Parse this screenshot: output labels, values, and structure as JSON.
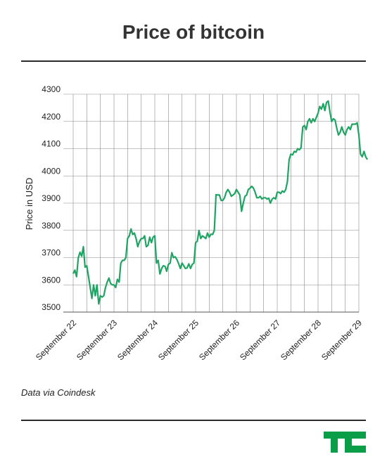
{
  "page": {
    "title": "Price of bitcoin",
    "source": "Data via Coindesk",
    "line_color": "#1fa463",
    "logo_color": "#0a9e49",
    "logo_icon": "techcrunch-tc-logo-icon"
  },
  "chart_data": {
    "type": "line",
    "title": "Price of bitcoin",
    "xlabel": "",
    "ylabel": "Price in USD",
    "ylim": [
      3500,
      4300
    ],
    "yticks": [
      3500,
      3600,
      3700,
      3800,
      3900,
      4000,
      4100,
      4200,
      4300
    ],
    "xlim": [
      "2017-09-22",
      "2017-09-29"
    ],
    "xtick_labels": [
      "September 22",
      "September 23",
      "September 24",
      "September 25",
      "September 26",
      "September 27",
      "September 28",
      "September 29"
    ],
    "grid": true,
    "legend": "none",
    "series": [
      {
        "x": [
          "2017-09-22T00:00",
          "2017-09-22T01:00",
          "2017-09-22T02:00",
          "2017-09-22T03:00",
          "2017-09-22T04:00",
          "2017-09-22T05:00",
          "2017-09-22T06:00",
          "2017-09-22T07:00",
          "2017-09-22T08:00",
          "2017-09-22T09:00",
          "2017-09-22T10:00",
          "2017-09-22T11:00",
          "2017-09-22T12:00",
          "2017-09-22T13:00",
          "2017-09-22T14:00",
          "2017-09-22T15:00",
          "2017-09-22T16:00",
          "2017-09-22T17:00",
          "2017-09-22T18:00",
          "2017-09-22T19:00",
          "2017-09-22T20:00",
          "2017-09-22T21:00",
          "2017-09-22T22:00",
          "2017-09-22T23:00",
          "2017-09-23T00:00",
          "2017-09-23T01:00",
          "2017-09-23T02:00",
          "2017-09-23T03:00",
          "2017-09-23T04:00",
          "2017-09-23T05:00",
          "2017-09-23T06:00",
          "2017-09-23T07:00",
          "2017-09-23T08:00",
          "2017-09-23T09:00",
          "2017-09-23T10:00",
          "2017-09-23T11:00",
          "2017-09-23T12:00",
          "2017-09-23T13:00",
          "2017-09-23T14:00",
          "2017-09-23T15:00",
          "2017-09-23T16:00",
          "2017-09-23T17:00",
          "2017-09-23T18:00",
          "2017-09-23T19:00",
          "2017-09-23T20:00",
          "2017-09-23T21:00",
          "2017-09-23T22:00",
          "2017-09-23T23:00",
          "2017-09-24T00:00",
          "2017-09-24T01:00",
          "2017-09-24T02:00",
          "2017-09-24T03:00",
          "2017-09-24T04:00",
          "2017-09-24T05:00",
          "2017-09-24T06:00",
          "2017-09-24T07:00",
          "2017-09-24T08:00",
          "2017-09-24T09:00",
          "2017-09-24T10:00",
          "2017-09-24T11:00",
          "2017-09-24T12:00",
          "2017-09-24T13:00",
          "2017-09-24T14:00",
          "2017-09-24T15:00",
          "2017-09-24T16:00",
          "2017-09-24T17:00",
          "2017-09-24T18:00",
          "2017-09-24T19:00",
          "2017-09-24T20:00",
          "2017-09-24T21:00",
          "2017-09-24T22:00",
          "2017-09-24T23:00",
          "2017-09-25T00:00",
          "2017-09-25T01:00",
          "2017-09-25T02:00",
          "2017-09-25T03:00",
          "2017-09-25T04:00",
          "2017-09-25T05:00",
          "2017-09-25T06:00",
          "2017-09-25T07:00",
          "2017-09-25T08:00",
          "2017-09-25T09:00",
          "2017-09-25T10:00",
          "2017-09-25T11:00",
          "2017-09-25T12:00",
          "2017-09-25T13:00",
          "2017-09-25T14:00",
          "2017-09-25T15:00",
          "2017-09-25T16:00",
          "2017-09-25T17:00",
          "2017-09-25T18:00",
          "2017-09-25T19:00",
          "2017-09-25T20:00",
          "2017-09-25T21:00",
          "2017-09-25T22:00",
          "2017-09-25T23:00",
          "2017-09-26T00:00",
          "2017-09-26T01:00",
          "2017-09-26T02:00",
          "2017-09-26T03:00",
          "2017-09-26T04:00",
          "2017-09-26T05:00",
          "2017-09-26T06:00",
          "2017-09-26T07:00",
          "2017-09-26T08:00",
          "2017-09-26T09:00",
          "2017-09-26T10:00",
          "2017-09-26T11:00",
          "2017-09-26T12:00",
          "2017-09-26T13:00",
          "2017-09-26T14:00",
          "2017-09-26T15:00",
          "2017-09-26T16:00",
          "2017-09-26T17:00",
          "2017-09-26T18:00",
          "2017-09-26T19:00",
          "2017-09-26T20:00",
          "2017-09-26T21:00",
          "2017-09-26T22:00",
          "2017-09-26T23:00",
          "2017-09-27T00:00",
          "2017-09-27T01:00",
          "2017-09-27T02:00",
          "2017-09-27T03:00",
          "2017-09-27T04:00",
          "2017-09-27T05:00",
          "2017-09-27T06:00",
          "2017-09-27T07:00",
          "2017-09-27T08:00",
          "2017-09-27T09:00",
          "2017-09-27T10:00",
          "2017-09-27T11:00",
          "2017-09-27T12:00",
          "2017-09-27T13:00",
          "2017-09-27T14:00",
          "2017-09-27T15:00",
          "2017-09-27T16:00",
          "2017-09-27T17:00",
          "2017-09-27T18:00",
          "2017-09-27T19:00",
          "2017-09-27T20:00",
          "2017-09-27T21:00",
          "2017-09-27T22:00",
          "2017-09-27T23:00",
          "2017-09-28T00:00",
          "2017-09-28T01:00",
          "2017-09-28T02:00",
          "2017-09-28T03:00",
          "2017-09-28T04:00",
          "2017-09-28T05:00",
          "2017-09-28T06:00",
          "2017-09-28T07:00",
          "2017-09-28T08:00",
          "2017-09-28T09:00",
          "2017-09-28T10:00",
          "2017-09-28T11:00",
          "2017-09-28T12:00",
          "2017-09-28T13:00",
          "2017-09-28T14:00",
          "2017-09-28T15:00",
          "2017-09-28T16:00",
          "2017-09-28T17:00",
          "2017-09-28T18:00",
          "2017-09-28T19:00",
          "2017-09-28T20:00",
          "2017-09-28T21:00",
          "2017-09-28T22:00",
          "2017-09-28T23:00",
          "2017-09-29T00:00",
          "2017-09-29T01:00",
          "2017-09-29T02:00",
          "2017-09-29T03:00",
          "2017-09-29T04:00",
          "2017-09-29T05:00"
        ],
        "y": [
          3641,
          3654,
          3630,
          3700,
          3720,
          3705,
          3740,
          3665,
          3670,
          3630,
          3590,
          3550,
          3600,
          3560,
          3600,
          3530,
          3560,
          3555,
          3560,
          3590,
          3610,
          3625,
          3605,
          3600,
          3600,
          3590,
          3620,
          3610,
          3680,
          3690,
          3690,
          3700,
          3770,
          3780,
          3805,
          3785,
          3790,
          3770,
          3740,
          3760,
          3770,
          3770,
          3780,
          3740,
          3745,
          3775,
          3755,
          3775,
          3780,
          3680,
          3690,
          3640,
          3660,
          3670,
          3668,
          3650,
          3675,
          3680,
          3718,
          3700,
          3703,
          3693,
          3678,
          3660,
          3680,
          3670,
          3660,
          3662,
          3677,
          3660,
          3675,
          3680,
          3755,
          3760,
          3800,
          3770,
          3780,
          3775,
          3770,
          3790,
          3775,
          3786,
          3785,
          3800,
          3931,
          3930,
          3930,
          3910,
          3910,
          3920,
          3940,
          3950,
          3940,
          3925,
          3930,
          3935,
          3950,
          3940,
          3930,
          3870,
          3900,
          3925,
          3930,
          3950,
          3955,
          3962,
          3955,
          3940,
          3920,
          3920,
          3925,
          3915,
          3920,
          3920,
          3915,
          3918,
          3900,
          3915,
          3920,
          3915,
          3940,
          3940,
          3935,
          3945,
          3940,
          3950,
          3980,
          4060,
          4080,
          4077,
          4090,
          4087,
          4100,
          4096,
          4103,
          4180,
          4185,
          4170,
          4200,
          4210,
          4195,
          4210,
          4200,
          4215,
          4230,
          4255,
          4245,
          4265,
          4240,
          4270,
          4275,
          4235,
          4200,
          4210,
          4205,
          4175,
          4150,
          4160,
          4180,
          4160,
          4150,
          4170,
          4180,
          4170,
          4190,
          4190,
          4190,
          4195,
          4150,
          4080,
          4070,
          4090,
          4070,
          4060
        ]
      }
    ]
  }
}
